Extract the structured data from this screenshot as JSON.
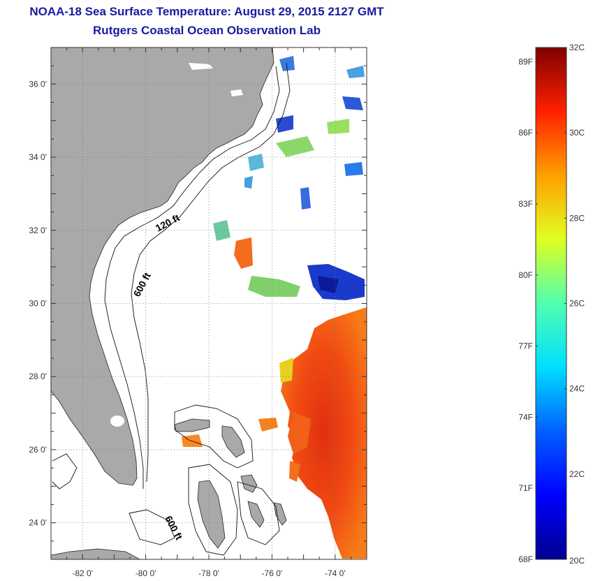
{
  "header": {
    "title": "NOAA-18 Sea Surface Temperature:  August 29, 2015 2127 GMT",
    "subtitle": "Rutgers Coastal Ocean Observation Lab"
  },
  "map": {
    "lat_range": [
      23,
      37
    ],
    "lon_range": [
      -83,
      -73
    ],
    "lat_ticks": [
      {
        "value": 24,
        "label": "24 0'"
      },
      {
        "value": 26,
        "label": "26 0'"
      },
      {
        "value": 28,
        "label": "28 0'"
      },
      {
        "value": 30,
        "label": "30 0'"
      },
      {
        "value": 32,
        "label": "32 0'"
      },
      {
        "value": 34,
        "label": "34 0'"
      },
      {
        "value": 36,
        "label": "36 0'"
      }
    ],
    "lon_ticks": [
      {
        "value": -82,
        "label": "-82 0'"
      },
      {
        "value": -80,
        "label": "-80 0'"
      },
      {
        "value": -78,
        "label": "-78 0'"
      },
      {
        "value": -76,
        "label": "-76 0'"
      },
      {
        "value": -74,
        "label": "-74 0'"
      }
    ],
    "contour_labels": [
      "120 ft",
      "600 ft",
      "600 ft"
    ],
    "colors": {
      "land": "#a9a9a9",
      "ocean_no_data": "#ffffff",
      "grid": "#777777"
    }
  },
  "colorbar": {
    "min_c": 20,
    "max_c": 32,
    "fahrenheit_labels": [
      "89F",
      "86F",
      "83F",
      "80F",
      "77F",
      "74F",
      "71F",
      "68F"
    ],
    "fahrenheit_values": [
      89,
      86,
      83,
      80,
      77,
      74,
      71,
      68
    ],
    "celsius_labels": [
      "32C",
      "30C",
      "28C",
      "26C",
      "24C",
      "22C",
      "20C"
    ],
    "celsius_values": [
      32,
      30,
      28,
      26,
      24,
      22,
      20
    ]
  }
}
